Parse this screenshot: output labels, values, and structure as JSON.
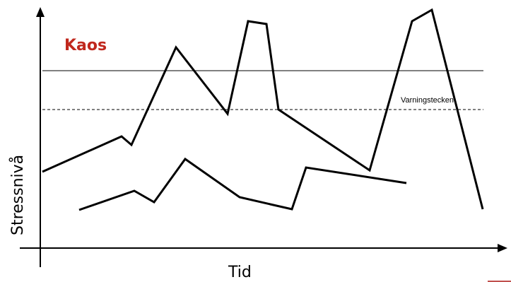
{
  "labels": {
    "chaos": "Kaos",
    "warning": "Varningstecken",
    "y_axis": "Stressnivå",
    "x_axis": "Tid"
  },
  "colors": {
    "chaos_label": "#c0281e",
    "corner_mark": "#c0504d"
  }
}
